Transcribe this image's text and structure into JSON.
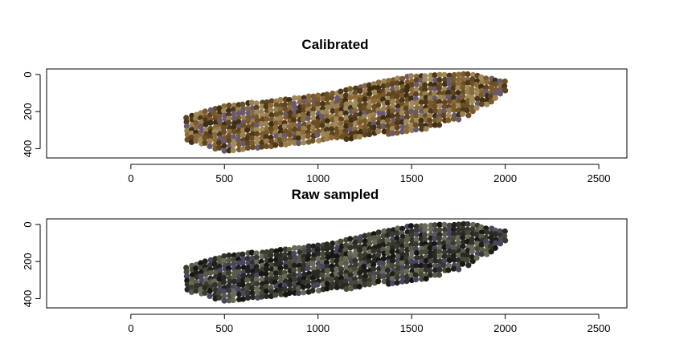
{
  "chart_data": [
    {
      "type": "scatter",
      "title": "Calibrated",
      "xlabel": "",
      "ylabel": "",
      "xlim": [
        -450,
        2650
      ],
      "ylim": [
        450,
        -30
      ],
      "y_reversed": true,
      "xticks": [
        0,
        500,
        1000,
        1500,
        2000,
        2500
      ],
      "yticks": [
        0,
        200,
        400
      ],
      "grid": false,
      "legend": "none",
      "palette": [
        "#6b4f26",
        "#7a5a2c",
        "#5e4420",
        "#8a6a3a",
        "#4d381a",
        "#9a8050",
        "#6a5a70",
        "#a08a5a",
        "#3e2e14"
      ],
      "point_region": {
        "x_range": [
          300,
          2000
        ],
        "y_range_at_x": [
          {
            "x": 300,
            "y_top": 230,
            "y_bottom": 360
          },
          {
            "x": 500,
            "y_top": 170,
            "y_bottom": 420
          },
          {
            "x": 800,
            "y_top": 140,
            "y_bottom": 400
          },
          {
            "x": 1100,
            "y_top": 100,
            "y_bottom": 360
          },
          {
            "x": 1300,
            "y_top": 50,
            "y_bottom": 330
          },
          {
            "x": 1500,
            "y_top": 10,
            "y_bottom": 320
          },
          {
            "x": 1800,
            "y_top": 0,
            "y_bottom": 230
          },
          {
            "x": 2000,
            "y_top": 40,
            "y_bottom": 100
          }
        ]
      }
    },
    {
      "type": "scatter",
      "title": "Raw sampled",
      "xlabel": "",
      "ylabel": "",
      "xlim": [
        -450,
        2650
      ],
      "ylim": [
        450,
        -30
      ],
      "y_reversed": true,
      "xticks": [
        0,
        500,
        1000,
        1500,
        2000,
        2500
      ],
      "yticks": [
        0,
        200,
        400
      ],
      "grid": false,
      "legend": "none",
      "palette": [
        "#2a2a24",
        "#1e1e1a",
        "#3a3a30",
        "#34302a",
        "#4a4838",
        "#161614",
        "#4a4660",
        "#6a6a5a",
        "#5a5a48"
      ],
      "point_region": {
        "x_range": [
          300,
          2000
        ],
        "y_range_at_x": [
          {
            "x": 300,
            "y_top": 230,
            "y_bottom": 360
          },
          {
            "x": 500,
            "y_top": 170,
            "y_bottom": 420
          },
          {
            "x": 800,
            "y_top": 140,
            "y_bottom": 400
          },
          {
            "x": 1100,
            "y_top": 100,
            "y_bottom": 360
          },
          {
            "x": 1300,
            "y_top": 50,
            "y_bottom": 330
          },
          {
            "x": 1500,
            "y_top": 10,
            "y_bottom": 320
          },
          {
            "x": 1800,
            "y_top": 0,
            "y_bottom": 230
          },
          {
            "x": 2000,
            "y_top": 40,
            "y_bottom": 100
          }
        ]
      }
    }
  ]
}
